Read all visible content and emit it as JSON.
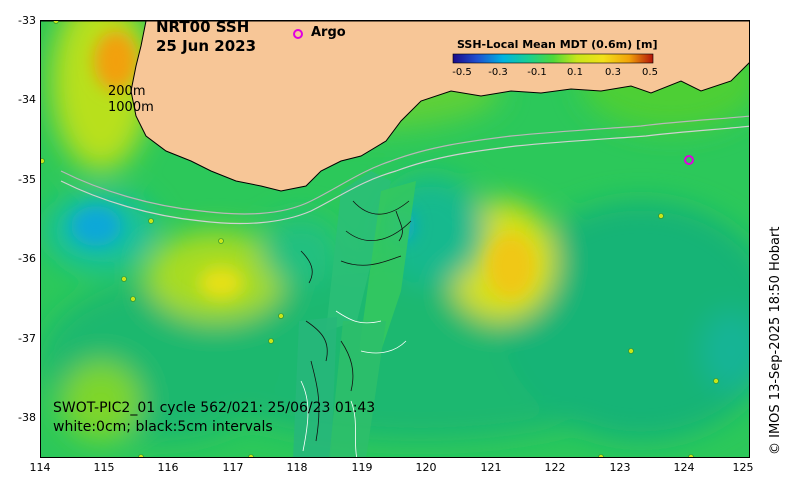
{
  "title": {
    "product": "NRT00 SSH",
    "date": "25 Jun 2023"
  },
  "legend": {
    "argo_label": "Argo",
    "argo_color": "#e000e0",
    "isobath_200": "200m",
    "isobath_1000": "1000m"
  },
  "colorbar": {
    "title": "SSH-Local Mean MDT (0.6m) [m]",
    "ticks": [
      "-0.5",
      "-0.3",
      "-0.1",
      "0.1",
      "0.3",
      "0.5"
    ],
    "colors": [
      "#1a0a8a",
      "#1f4fd0",
      "#00b3e0",
      "#18d090",
      "#4fd83a",
      "#c8e61a",
      "#f2e11a",
      "#f2a30a",
      "#e65a0a",
      "#b3140a"
    ]
  },
  "swath_note": {
    "line1": "SWOT-PIC2_01 cycle 562/021: 25/06/23 01:43",
    "line2": "white:0cm; black:5cm intervals"
  },
  "axes": {
    "lat_ticks": [
      "-33",
      "-34",
      "-35",
      "-36",
      "-37",
      "-38"
    ],
    "lon_ticks": [
      "114",
      "115",
      "116",
      "117",
      "118",
      "119",
      "120",
      "121",
      "122",
      "123",
      "124",
      "125"
    ]
  },
  "credit": "© IMOS 13-Sep-2025 18:50 Hobart",
  "colors": {
    "land": "#f7c697",
    "field_base": "#2cc85a"
  }
}
